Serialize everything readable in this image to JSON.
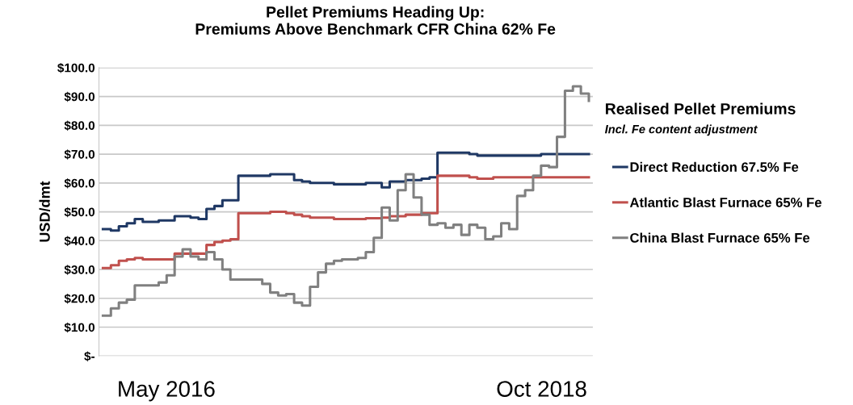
{
  "chart_data": {
    "type": "step",
    "title": "Pellet Premiums Heading Up:\nPremiums Above Benchmark CFR China 62% Fe",
    "ylabel": "USD/dmt",
    "legend_title": "Realised Pellet Premiums",
    "annotations": [
      "Incl. Fe content adjustment",
      "May 2016",
      "Oct 2018"
    ],
    "categories": [
      null,
      null,
      null,
      null,
      null,
      null,
      null,
      null,
      null,
      null,
      null,
      null,
      null,
      null,
      null,
      null,
      null,
      null,
      null,
      null,
      null,
      null,
      null,
      null,
      null,
      null,
      null,
      null,
      null,
      null,
      null,
      null,
      null,
      null,
      null,
      null,
      null,
      null,
      null,
      null,
      null,
      null,
      null,
      null,
      null,
      null,
      null,
      null,
      null,
      null,
      null,
      null,
      null,
      null,
      null,
      null,
      null,
      null,
      null,
      null,
      null,
      null
    ],
    "series": [
      {
        "name": "Direct Reduction 67.5% Fe",
        "color": "#1f3864",
        "values": [
          44,
          43.5,
          45,
          46,
          47.5,
          46.5,
          46.5,
          47,
          47,
          48.5,
          48.5,
          48,
          47.5,
          51,
          52,
          54,
          54,
          62.5,
          62.5,
          62.5,
          62.5,
          63,
          63,
          63,
          61,
          60.5,
          60,
          60,
          60,
          59.5,
          59.5,
          59.5,
          59.5,
          60,
          60,
          58.5,
          60.5,
          60.5,
          61,
          61,
          61.5,
          62,
          70.5,
          70.5,
          70.5,
          70.5,
          70,
          69.5,
          69.5,
          69.5,
          69.5,
          69.5,
          69.5,
          69.5,
          69.5,
          70,
          70,
          70,
          70,
          70,
          70,
          70
        ]
      },
      {
        "name": "Atlantic Blast Furnace 65% Fe",
        "color": "#c0504d",
        "values": [
          30.5,
          31.5,
          33,
          33.5,
          34,
          33.5,
          33.5,
          33.5,
          33.5,
          35.5,
          35.5,
          35.5,
          35.5,
          38.5,
          39.5,
          40,
          40.5,
          49.5,
          49.5,
          49.5,
          49.5,
          50,
          50,
          49.5,
          49,
          48.5,
          48,
          48,
          48,
          47.5,
          47.5,
          47.5,
          47.5,
          47.8,
          47.8,
          48,
          48.5,
          48.5,
          49,
          49,
          49.5,
          49.5,
          62.5,
          62.5,
          62.5,
          62.5,
          62,
          61.5,
          61.5,
          62,
          62,
          62,
          62,
          62,
          62,
          62,
          62,
          62,
          62,
          62,
          62,
          62
        ]
      },
      {
        "name": "China Blast Furnace 65% Fe",
        "color": "#808080",
        "values": [
          14,
          16.5,
          18.5,
          19.5,
          24.5,
          24.5,
          24.5,
          25.5,
          28,
          34.5,
          37,
          34.5,
          33.5,
          36,
          33.5,
          30,
          26.5,
          26.5,
          26.5,
          26.5,
          25,
          22,
          21,
          21.5,
          18.5,
          17.5,
          24,
          29,
          32,
          33,
          33.5,
          33.5,
          34,
          36,
          41,
          51.5,
          47,
          57.5,
          63,
          55,
          49,
          45.5,
          46,
          44.5,
          45.5,
          42,
          45.5,
          44.5,
          40.5,
          41.5,
          46,
          44,
          55.5,
          57.5,
          62.5,
          66,
          65.5,
          76,
          92,
          93.5,
          91,
          88.5
        ]
      }
    ],
    "ylim": [
      0,
      100
    ],
    "yticks": [
      {
        "value": 0,
        "label": "$-"
      },
      {
        "value": 10,
        "label": "$10.0"
      },
      {
        "value": 20,
        "label": "$20.0"
      },
      {
        "value": 30,
        "label": "$30.0"
      },
      {
        "value": 40,
        "label": "$40.0"
      },
      {
        "value": 50,
        "label": "$50.0"
      },
      {
        "value": 60,
        "label": "$60.0"
      },
      {
        "value": 70,
        "label": "$70.0"
      },
      {
        "value": 80,
        "label": "$80.0"
      },
      {
        "value": 90,
        "label": "$90.0"
      },
      {
        "value": 100,
        "label": "$100.0"
      }
    ],
    "grid": "y",
    "legend": "right",
    "line_style": "solid",
    "tick_labels": "y"
  }
}
